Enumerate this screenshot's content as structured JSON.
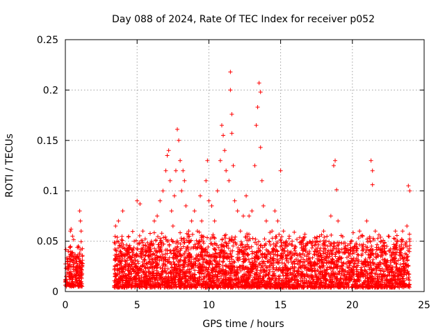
{
  "chart_data": {
    "type": "scatter",
    "title": "Day 088 of 2024, Rate Of TEC Index for receiver p052",
    "xlabel": "GPS time / hours",
    "ylabel": "ROTI / TECUs",
    "xlim": [
      0,
      25
    ],
    "ylim": [
      0,
      0.25
    ],
    "x_ticks": [
      0,
      5,
      10,
      15,
      20,
      25
    ],
    "x_tick_labels": [
      "0",
      "5",
      "10",
      "15",
      "20",
      "25"
    ],
    "y_ticks": [
      0,
      0.05,
      0.1,
      0.15,
      0.2,
      0.25
    ],
    "y_tick_labels": [
      "0",
      "0.05",
      "0.1",
      "0.15",
      "0.2",
      "0.25"
    ],
    "grid": true,
    "marker": "+",
    "marker_color": "#ff0000",
    "series": [
      {
        "name": "ROTI",
        "points": [
          [
            0.1,
            0.012
          ],
          [
            0.2,
            0.025
          ],
          [
            0.3,
            0.035
          ],
          [
            0.35,
            0.06
          ],
          [
            0.4,
            0.062
          ],
          [
            0.5,
            0.055
          ],
          [
            0.6,
            0.02
          ],
          [
            0.7,
            0.015
          ],
          [
            0.8,
            0.03
          ],
          [
            0.9,
            0.045
          ],
          [
            1.0,
            0.08
          ],
          [
            1.05,
            0.07
          ],
          [
            1.1,
            0.06
          ],
          [
            1.0,
            0.03
          ],
          [
            0.5,
            0.01
          ],
          [
            0.9,
            0.005
          ],
          [
            1.1,
            0.02
          ],
          [
            0.2,
            0.04
          ],
          [
            0.6,
            0.035
          ],
          [
            0.05,
            0.015
          ],
          [
            3.5,
            0.065
          ],
          [
            3.6,
            0.05
          ],
          [
            3.7,
            0.07
          ],
          [
            3.8,
            0.04
          ],
          [
            3.9,
            0.03
          ],
          [
            4.0,
            0.02
          ],
          [
            4.0,
            0.08
          ],
          [
            4.2,
            0.025
          ],
          [
            4.5,
            0.035
          ],
          [
            4.8,
            0.05
          ],
          [
            5.0,
            0.09
          ],
          [
            5.2,
            0.087
          ],
          [
            5.4,
            0.06
          ],
          [
            5.6,
            0.04
          ],
          [
            5.8,
            0.035
          ],
          [
            6.0,
            0.05
          ],
          [
            6.2,
            0.07
          ],
          [
            6.4,
            0.075
          ],
          [
            6.6,
            0.09
          ],
          [
            6.8,
            0.1
          ],
          [
            7.0,
            0.12
          ],
          [
            7.1,
            0.135
          ],
          [
            7.2,
            0.14
          ],
          [
            7.3,
            0.11
          ],
          [
            7.4,
            0.08
          ],
          [
            7.5,
            0.065
          ],
          [
            7.6,
            0.095
          ],
          [
            7.7,
            0.12
          ],
          [
            7.8,
            0.161
          ],
          [
            7.9,
            0.15
          ],
          [
            8.0,
            0.13
          ],
          [
            8.1,
            0.1
          ],
          [
            8.2,
            0.12
          ],
          [
            8.3,
            0.11
          ],
          [
            8.4,
            0.085
          ],
          [
            8.6,
            0.06
          ],
          [
            8.8,
            0.07
          ],
          [
            9.0,
            0.08
          ],
          [
            9.2,
            0.06
          ],
          [
            9.4,
            0.095
          ],
          [
            9.5,
            0.07
          ],
          [
            9.6,
            0.05
          ],
          [
            9.8,
            0.11
          ],
          [
            9.9,
            0.13
          ],
          [
            10.0,
            0.09
          ],
          [
            10.2,
            0.085
          ],
          [
            10.4,
            0.07
          ],
          [
            10.6,
            0.1
          ],
          [
            10.8,
            0.13
          ],
          [
            10.9,
            0.165
          ],
          [
            11.0,
            0.155
          ],
          [
            11.1,
            0.14
          ],
          [
            11.2,
            0.12
          ],
          [
            11.4,
            0.11
          ],
          [
            11.5,
            0.2
          ],
          [
            11.5,
            0.218
          ],
          [
            11.6,
            0.176
          ],
          [
            11.6,
            0.157
          ],
          [
            11.7,
            0.125
          ],
          [
            11.8,
            0.09
          ],
          [
            12.0,
            0.08
          ],
          [
            12.2,
            0.06
          ],
          [
            12.4,
            0.075
          ],
          [
            12.6,
            0.095
          ],
          [
            12.8,
            0.075
          ],
          [
            13.0,
            0.08
          ],
          [
            13.2,
            0.125
          ],
          [
            13.3,
            0.165
          ],
          [
            13.4,
            0.183
          ],
          [
            13.5,
            0.207
          ],
          [
            13.6,
            0.198
          ],
          [
            13.6,
            0.143
          ],
          [
            13.7,
            0.11
          ],
          [
            13.8,
            0.085
          ],
          [
            14.0,
            0.07
          ],
          [
            14.2,
            0.05
          ],
          [
            14.4,
            0.06
          ],
          [
            14.6,
            0.08
          ],
          [
            14.8,
            0.07
          ],
          [
            15.0,
            0.12
          ],
          [
            15.2,
            0.06
          ],
          [
            15.4,
            0.05
          ],
          [
            15.6,
            0.055
          ],
          [
            15.8,
            0.05
          ],
          [
            16.0,
            0.045
          ],
          [
            16.5,
            0.05
          ],
          [
            17.0,
            0.04
          ],
          [
            17.5,
            0.05
          ],
          [
            18.0,
            0.06
          ],
          [
            18.5,
            0.075
          ],
          [
            18.7,
            0.125
          ],
          [
            18.8,
            0.13
          ],
          [
            18.9,
            0.101
          ],
          [
            19.0,
            0.07
          ],
          [
            19.5,
            0.045
          ],
          [
            20.0,
            0.04
          ],
          [
            20.5,
            0.06
          ],
          [
            21.0,
            0.07
          ],
          [
            21.3,
            0.13
          ],
          [
            21.4,
            0.12
          ],
          [
            21.4,
            0.106
          ],
          [
            21.6,
            0.06
          ],
          [
            22.0,
            0.05
          ],
          [
            22.5,
            0.055
          ],
          [
            23.0,
            0.06
          ],
          [
            23.5,
            0.06
          ],
          [
            23.8,
            0.065
          ],
          [
            23.9,
            0.105
          ],
          [
            24.0,
            0.1
          ],
          [
            24.0,
            0.05
          ]
        ]
      }
    ],
    "dense_band": {
      "note": "dense cluster of low ROTI values plotted between these data ranges",
      "segments": [
        {
          "x_from": 0.0,
          "x_to": 1.2,
          "y_from": 0.005,
          "y_to": 0.035
        },
        {
          "x_from": 3.4,
          "x_to": 24.0,
          "y_from": 0.004,
          "y_to": 0.04
        }
      ]
    }
  }
}
